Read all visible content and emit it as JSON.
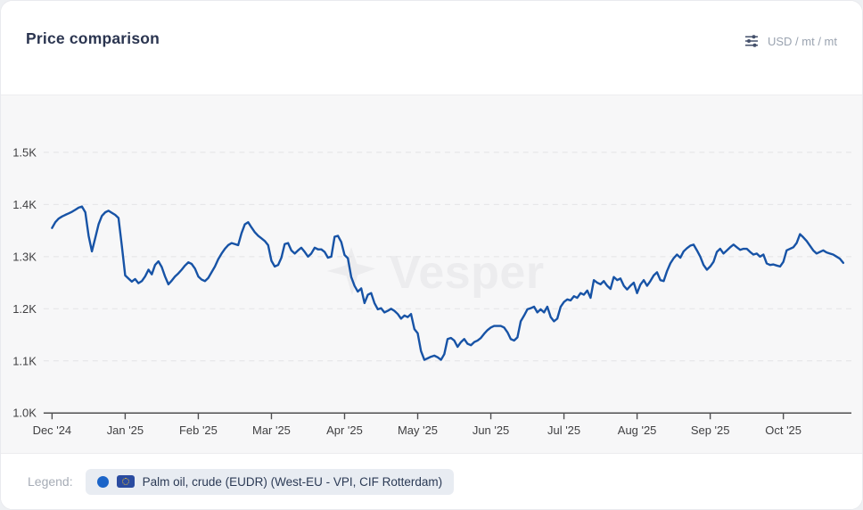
{
  "header": {
    "title": "Price comparison",
    "unit_selector": "USD / mt / mt"
  },
  "watermark": {
    "text": "Vesper"
  },
  "legend": {
    "label": "Legend:",
    "series": [
      {
        "name": "Palm oil, crude (EUDR) (West-EU - VPI, CIF Rotterdam)",
        "dot_color": "#1b64c8",
        "flag": "eu-flag"
      }
    ]
  },
  "colors": {
    "line": "#1753a6",
    "legend_dot": "#1b64c8",
    "axis_text": "#3f3f41",
    "grid": "#e3e3e5",
    "chart_bg": "#f7f7f8",
    "watermark": "#ececee",
    "title_text": "#2b3550",
    "muted_text": "#9aa3b0"
  },
  "chart_data": {
    "type": "line",
    "title": "Price comparison",
    "unit": "USD / mt",
    "x_tick_labels": [
      "Dec '24",
      "Jan '25",
      "Feb '25",
      "Mar '25",
      "Apr '25",
      "May '25",
      "Jun '25",
      "Jul '25",
      "Aug '25",
      "Sep '25",
      "Oct '25"
    ],
    "y_ticks": [
      {
        "label": "1.0K",
        "value": 1000
      },
      {
        "label": "1.1K",
        "value": 1100
      },
      {
        "label": "1.2K",
        "value": 1200
      },
      {
        "label": "1.3K",
        "value": 1300
      },
      {
        "label": "1.4K",
        "value": 1400
      },
      {
        "label": "1.5K",
        "value": 1500
      }
    ],
    "ylim": [
      1000,
      1500
    ],
    "grid": "horizontal-dashed",
    "legend_position": "bottom",
    "points_per_month": 22,
    "series": [
      {
        "name": "Palm oil, crude (EUDR) (West-EU - VPI, CIF Rotterdam)",
        "color": "#1753a6",
        "values": [
          1355,
          1366,
          1373,
          1377,
          1380,
          1383,
          1386,
          1390,
          1394,
          1396,
          1385,
          1340,
          1310,
          1336,
          1362,
          1378,
          1385,
          1388,
          1384,
          1380,
          1374,
          1320,
          1264,
          1258,
          1252,
          1257,
          1249,
          1253,
          1262,
          1275,
          1266,
          1284,
          1291,
          1280,
          1262,
          1247,
          1254,
          1262,
          1268,
          1275,
          1283,
          1289,
          1286,
          1277,
          1262,
          1256,
          1253,
          1259,
          1270,
          1281,
          1295,
          1306,
          1315,
          1322,
          1326,
          1324,
          1322,
          1345,
          1362,
          1366,
          1356,
          1347,
          1340,
          1335,
          1330,
          1322,
          1292,
          1281,
          1284,
          1298,
          1324,
          1326,
          1312,
          1306,
          1312,
          1317,
          1309,
          1300,
          1306,
          1317,
          1314,
          1314,
          1309,
          1298,
          1300,
          1338,
          1340,
          1328,
          1303,
          1297,
          1261,
          1244,
          1233,
          1239,
          1211,
          1227,
          1230,
          1211,
          1199,
          1201,
          1193,
          1196,
          1200,
          1196,
          1190,
          1181,
          1187,
          1184,
          1190,
          1161,
          1153,
          1119,
          1102,
          1105,
          1108,
          1110,
          1107,
          1102,
          1113,
          1142,
          1144,
          1139,
          1127,
          1136,
          1142,
          1133,
          1130,
          1136,
          1139,
          1144,
          1152,
          1159,
          1164,
          1167,
          1167,
          1167,
          1164,
          1155,
          1142,
          1139,
          1145,
          1176,
          1187,
          1199,
          1201,
          1204,
          1193,
          1199,
          1193,
          1204,
          1184,
          1176,
          1181,
          1204,
          1213,
          1218,
          1216,
          1224,
          1221,
          1230,
          1227,
          1235,
          1221,
          1255,
          1250,
          1247,
          1253,
          1244,
          1238,
          1261,
          1255,
          1258,
          1244,
          1237,
          1244,
          1250,
          1230,
          1246,
          1255,
          1244,
          1253,
          1264,
          1270,
          1255,
          1253,
          1272,
          1287,
          1297,
          1304,
          1298,
          1310,
          1316,
          1321,
          1323,
          1312,
          1300,
          1284,
          1275,
          1281,
          1290,
          1309,
          1315,
          1306,
          1312,
          1318,
          1323,
          1318,
          1313,
          1315,
          1315,
          1309,
          1304,
          1306,
          1300,
          1304,
          1287,
          1284,
          1285,
          1283,
          1281,
          1290,
          1312,
          1315,
          1318,
          1326,
          1343,
          1337,
          1330,
          1321,
          1312,
          1306,
          1309,
          1312,
          1308,
          1306,
          1304,
          1300,
          1296,
          1288
        ]
      }
    ]
  }
}
